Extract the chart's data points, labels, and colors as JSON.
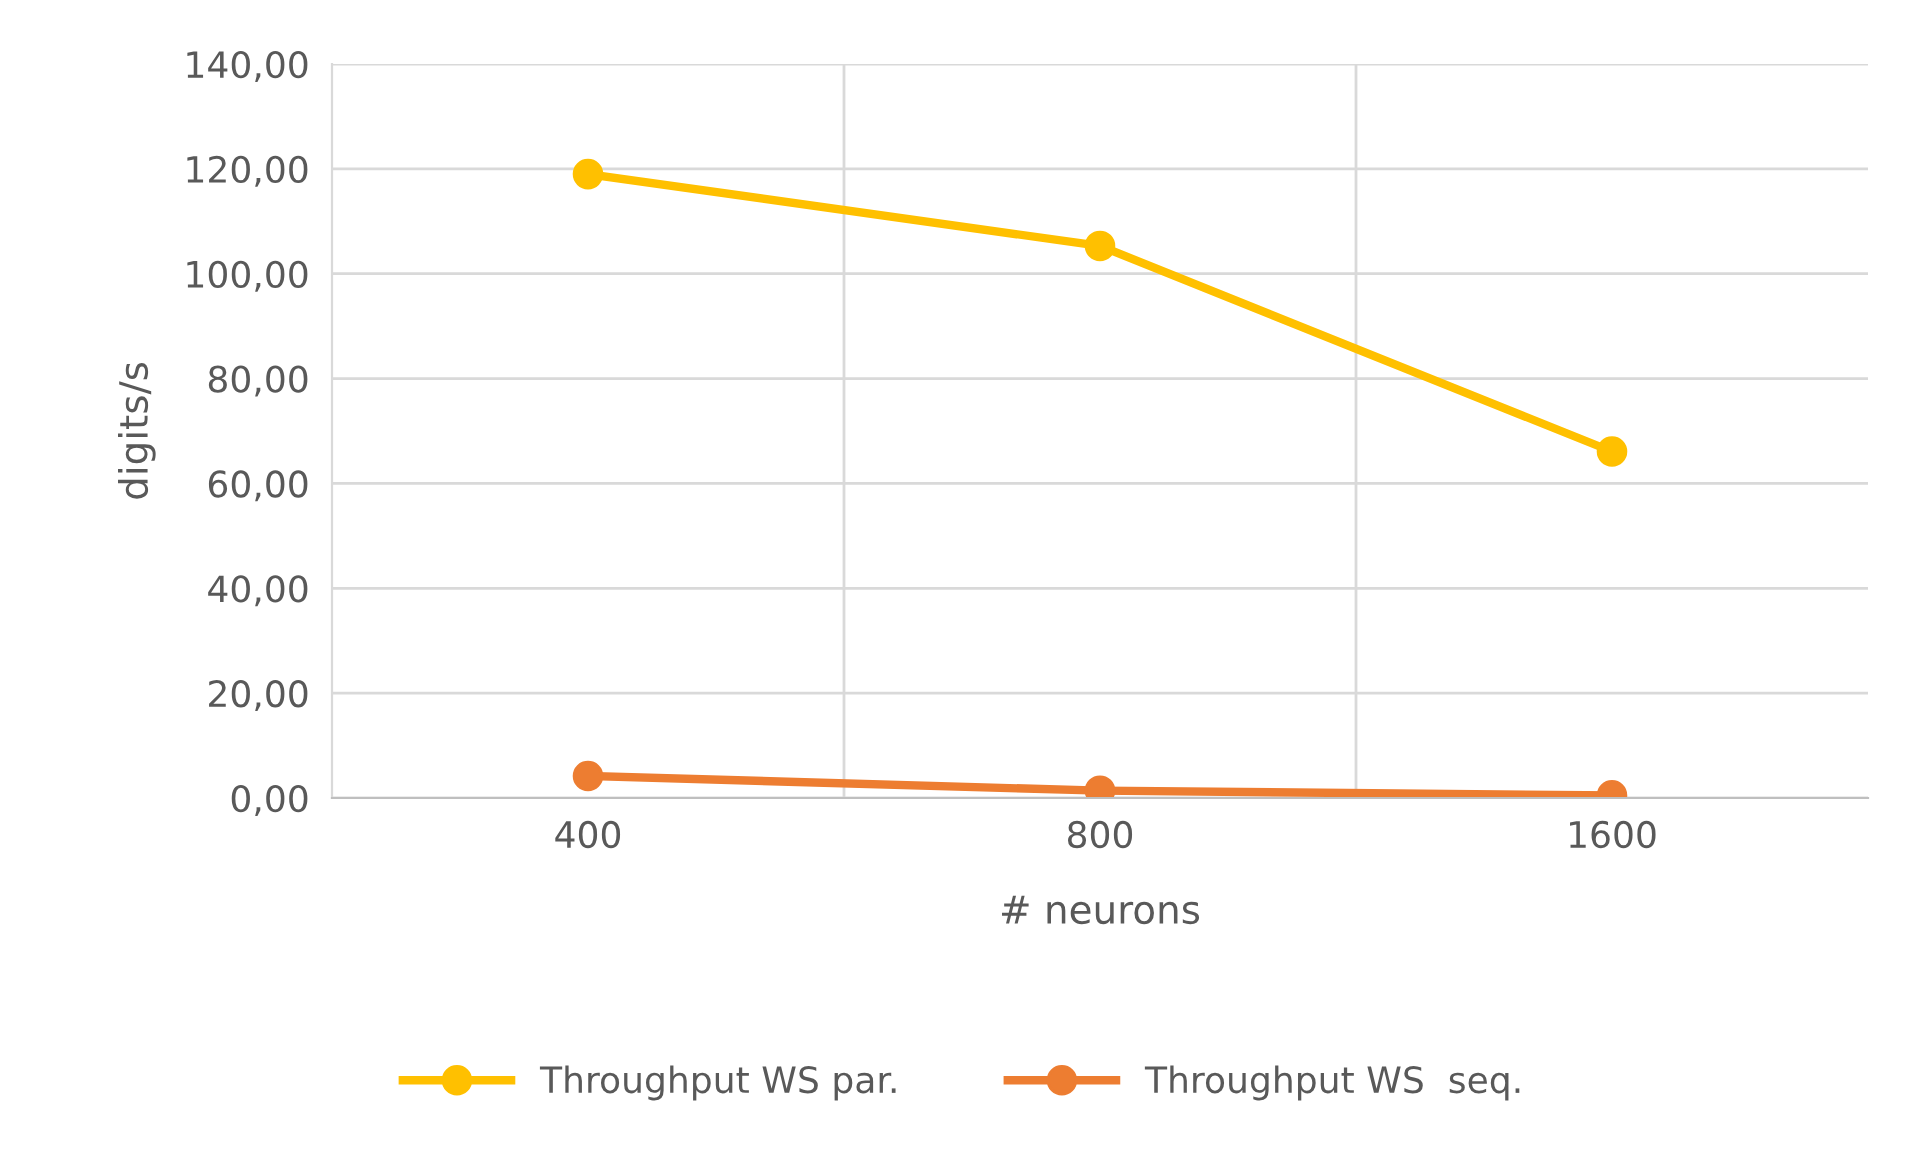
{
  "chart_data": {
    "type": "line",
    "xlabel": "# neurons",
    "ylabel": "digits/s",
    "categories": [
      "400",
      "800",
      "1600"
    ],
    "series": [
      {
        "name": "Throughput WS par.",
        "color": "#ffc000",
        "values": [
          119.0,
          105.3,
          66.1
        ]
      },
      {
        "name": "Throughput WS  seq.",
        "color": "#ed7d31",
        "values": [
          4.2,
          1.4,
          0.5
        ]
      }
    ],
    "ylim": [
      0,
      140
    ],
    "yticks": [
      {
        "value": 0,
        "label": "0,00"
      },
      {
        "value": 20,
        "label": "20,00"
      },
      {
        "value": 40,
        "label": "40,00"
      },
      {
        "value": 60,
        "label": "60,00"
      },
      {
        "value": 80,
        "label": "80,00"
      },
      {
        "value": 100,
        "label": "100,00"
      },
      {
        "value": 120,
        "label": "120,00"
      },
      {
        "value": 140,
        "label": "140,00"
      }
    ],
    "grid": true,
    "legend": "bottom",
    "marker": "circle",
    "line_style": "solid"
  }
}
